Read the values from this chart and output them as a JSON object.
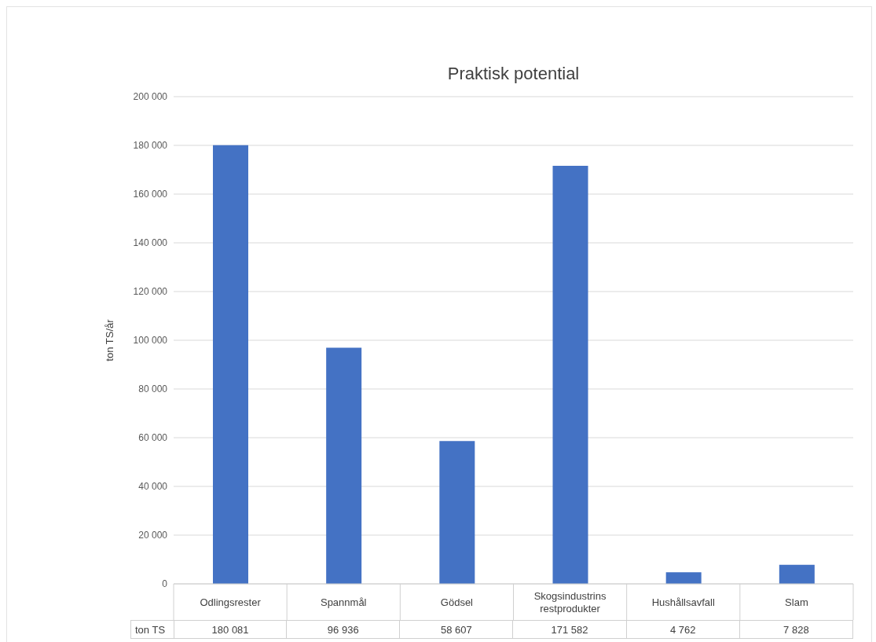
{
  "chart_data": {
    "type": "bar",
    "title": "Praktisk potential",
    "ylabel": "ton TS/år",
    "categories": [
      "Odlingsrester",
      "Spannmål",
      "Gödsel",
      "Skogsindustrins restprodukter",
      "Hushållsavfall",
      "Slam"
    ],
    "series": [
      {
        "name": "ton TS",
        "color": "#4472c4",
        "values": [
          180081,
          96936,
          58607,
          171582,
          4762,
          7828
        ],
        "value_labels": [
          "180 081",
          "96 936",
          "58 607",
          "171 582",
          "4 762",
          "7 828"
        ]
      }
    ],
    "ylim": [
      0,
      200000
    ],
    "yticks": [
      {
        "value": 0,
        "label": "0"
      },
      {
        "value": 20000,
        "label": "20 000"
      },
      {
        "value": 40000,
        "label": "40 000"
      },
      {
        "value": 60000,
        "label": "60 000"
      },
      {
        "value": 80000,
        "label": "80 000"
      },
      {
        "value": 100000,
        "label": "100 000"
      },
      {
        "value": 120000,
        "label": "120 000"
      },
      {
        "value": 140000,
        "label": "140 000"
      },
      {
        "value": 160000,
        "label": "160 000"
      },
      {
        "value": 180000,
        "label": "180 000"
      },
      {
        "value": 200000,
        "label": "200 000"
      }
    ],
    "grid": "y"
  }
}
